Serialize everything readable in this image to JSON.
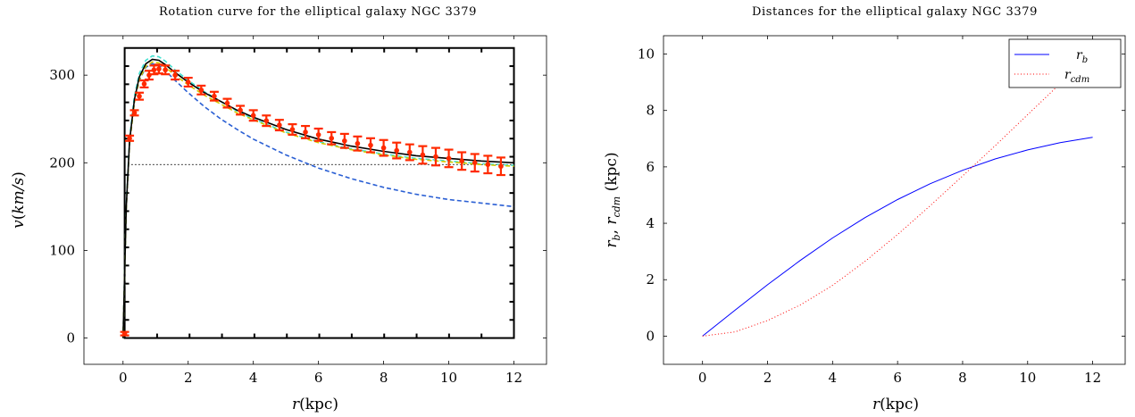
{
  "chart_data": [
    {
      "type": "line",
      "title": "Rotation curve for the elliptical galaxy NGC 3379",
      "xlabel": "r(kpc)",
      "ylabel": "v(km/s)",
      "xlim": [
        -1.2,
        13.0
      ],
      "ylim": [
        -30,
        345
      ],
      "xticks": [
        0,
        2,
        4,
        6,
        8,
        10,
        12
      ],
      "yticks": [
        0,
        100,
        200,
        300
      ],
      "xtick_labels": [
        "0",
        "2",
        "4",
        "6",
        "8",
        "10",
        "12"
      ],
      "ytick_labels": [
        "0",
        "100",
        "200",
        "300"
      ],
      "grid": false,
      "inset_box": [
        0.05,
        12.0,
        0,
        331
      ],
      "reference_line": 198,
      "series": [
        {
          "style": "curve-solid",
          "color": "#000000",
          "x": [
            0,
            0.1,
            0.2,
            0.35,
            0.5,
            0.7,
            0.9,
            1.1,
            1.3,
            1.6,
            2.0,
            2.5,
            3.0,
            3.5,
            4.0,
            5.0,
            6.0,
            7.0,
            8.0,
            9.0,
            10.0,
            11.0,
            12.0
          ],
          "y": [
            0,
            150,
            225,
            272,
            298,
            313,
            318,
            317,
            312,
            303,
            292,
            280,
            270,
            260,
            252,
            238,
            227,
            219,
            213,
            208,
            205,
            202,
            200
          ]
        },
        {
          "style": "curve-dashed",
          "color": "#40e0d0",
          "x": [
            0,
            0.1,
            0.2,
            0.35,
            0.5,
            0.7,
            0.9,
            1.1,
            1.3,
            1.6,
            2.0,
            2.5,
            3.0,
            3.5,
            4.0,
            5.0,
            6.0,
            7.0,
            8.0,
            9.0,
            10.0,
            11.0,
            12.0
          ],
          "y": [
            0,
            152,
            228,
            276,
            302,
            317,
            322,
            321,
            316,
            306,
            294,
            281,
            270,
            259,
            250,
            235,
            224,
            216,
            210,
            205,
            202,
            199,
            197
          ]
        },
        {
          "style": "curve-dashed",
          "color": "#d4c800",
          "x": [
            0,
            0.1,
            0.2,
            0.35,
            0.5,
            0.7,
            0.9,
            1.1,
            1.3,
            1.6,
            2.0,
            2.5,
            3.0,
            3.5,
            4.0,
            5.0,
            6.0,
            7.0,
            8.0,
            9.0,
            10.0,
            11.0,
            12.0
          ],
          "y": [
            0,
            148,
            222,
            269,
            295,
            310,
            315,
            314,
            309,
            300,
            289,
            277,
            267,
            257,
            249,
            234,
            223,
            215,
            209,
            204,
            201,
            198,
            196
          ]
        },
        {
          "style": "curve-dashed",
          "color": "#2a5fd4",
          "x": [
            0,
            0.1,
            0.2,
            0.35,
            0.5,
            0.7,
            0.9,
            1.1,
            1.3,
            1.6,
            2.0,
            2.5,
            3.0,
            3.5,
            4.0,
            5.0,
            6.0,
            7.0,
            8.0,
            9.0,
            10.0,
            11.0,
            12.0
          ],
          "y": [
            0,
            148,
            222,
            269,
            294,
            309,
            313,
            311,
            305,
            294,
            280,
            264,
            250,
            238,
            227,
            209,
            194,
            182,
            172,
            164,
            158,
            154,
            150
          ]
        },
        {
          "style": "points-errorbars",
          "color": "#ff2a00",
          "x": [
            0.05,
            0.2,
            0.35,
            0.5,
            0.65,
            0.8,
            0.95,
            1.1,
            1.3,
            1.6,
            2.0,
            2.4,
            2.8,
            3.2,
            3.6,
            4.0,
            4.4,
            4.8,
            5.2,
            5.6,
            6.0,
            6.4,
            6.8,
            7.2,
            7.6,
            8.0,
            8.4,
            8.8,
            9.2,
            9.6,
            10.0,
            10.4,
            10.8,
            11.2,
            11.6
          ],
          "y": [
            5,
            228,
            257,
            276,
            290,
            300,
            306,
            307,
            306,
            300,
            292,
            283,
            276,
            268,
            260,
            254,
            248,
            243,
            238,
            235,
            232,
            228,
            225,
            222,
            220,
            217,
            214,
            212,
            209,
            207,
            205,
            202,
            200,
            198,
            196
          ],
          "err": [
            2,
            3,
            3,
            4,
            4,
            5,
            5,
            5,
            5,
            5,
            5,
            5,
            5,
            5,
            5,
            6,
            6,
            6,
            6,
            7,
            7,
            7,
            8,
            8,
            8,
            9,
            9,
            9,
            10,
            10,
            10,
            10,
            10,
            10,
            10
          ]
        }
      ]
    },
    {
      "type": "line",
      "title": "Distances for the elliptical galaxy NGC 3379",
      "xlabel": "r(kpc)",
      "ylabel": "r_b, r_cdm (kpc)",
      "xlim": [
        -1.2,
        13.0
      ],
      "ylim": [
        -1.0,
        10.65
      ],
      "xticks": [
        0,
        2,
        4,
        6,
        8,
        10,
        12
      ],
      "yticks": [
        0,
        2,
        4,
        6,
        8,
        10
      ],
      "xtick_labels": [
        "0",
        "2",
        "4",
        "6",
        "8",
        "10",
        "12"
      ],
      "ytick_labels": [
        "0",
        "2",
        "4",
        "6",
        "8",
        "10"
      ],
      "grid": false,
      "legend": "top-right",
      "series": [
        {
          "name": "r_b",
          "style": "solid",
          "color": "#0000ff",
          "x": [
            0,
            1,
            2,
            3,
            4,
            5,
            6,
            7,
            8,
            9,
            10,
            11,
            12
          ],
          "y": [
            0,
            0.92,
            1.82,
            2.68,
            3.48,
            4.2,
            4.84,
            5.4,
            5.88,
            6.28,
            6.6,
            6.86,
            7.05
          ]
        },
        {
          "name": "r_cdm",
          "style": "dotted",
          "color": "#ff0000",
          "x": [
            0,
            1,
            2,
            3,
            4,
            5,
            6,
            7,
            8,
            9,
            10,
            11,
            12
          ],
          "y": [
            0,
            0.15,
            0.55,
            1.1,
            1.8,
            2.65,
            3.6,
            4.62,
            5.68,
            6.75,
            7.85,
            8.95,
            10.05
          ]
        }
      ]
    }
  ],
  "legend_labels": {
    "rb_base": "r",
    "rb_sub": "b",
    "rcdm_base": "r",
    "rcdm_sub": "cdm"
  },
  "axis_text": {
    "x_r": "r",
    "x_unit": "(kpc)",
    "y1_v": "v",
    "y1_unit": "(km/s)",
    "y2_rb": "r",
    "y2_rb_sub": "b",
    "y2_sep": ", ",
    "y2_rcdm": "r",
    "y2_rcdm_sub": "cdm",
    "y2_unit": " (kpc)"
  }
}
